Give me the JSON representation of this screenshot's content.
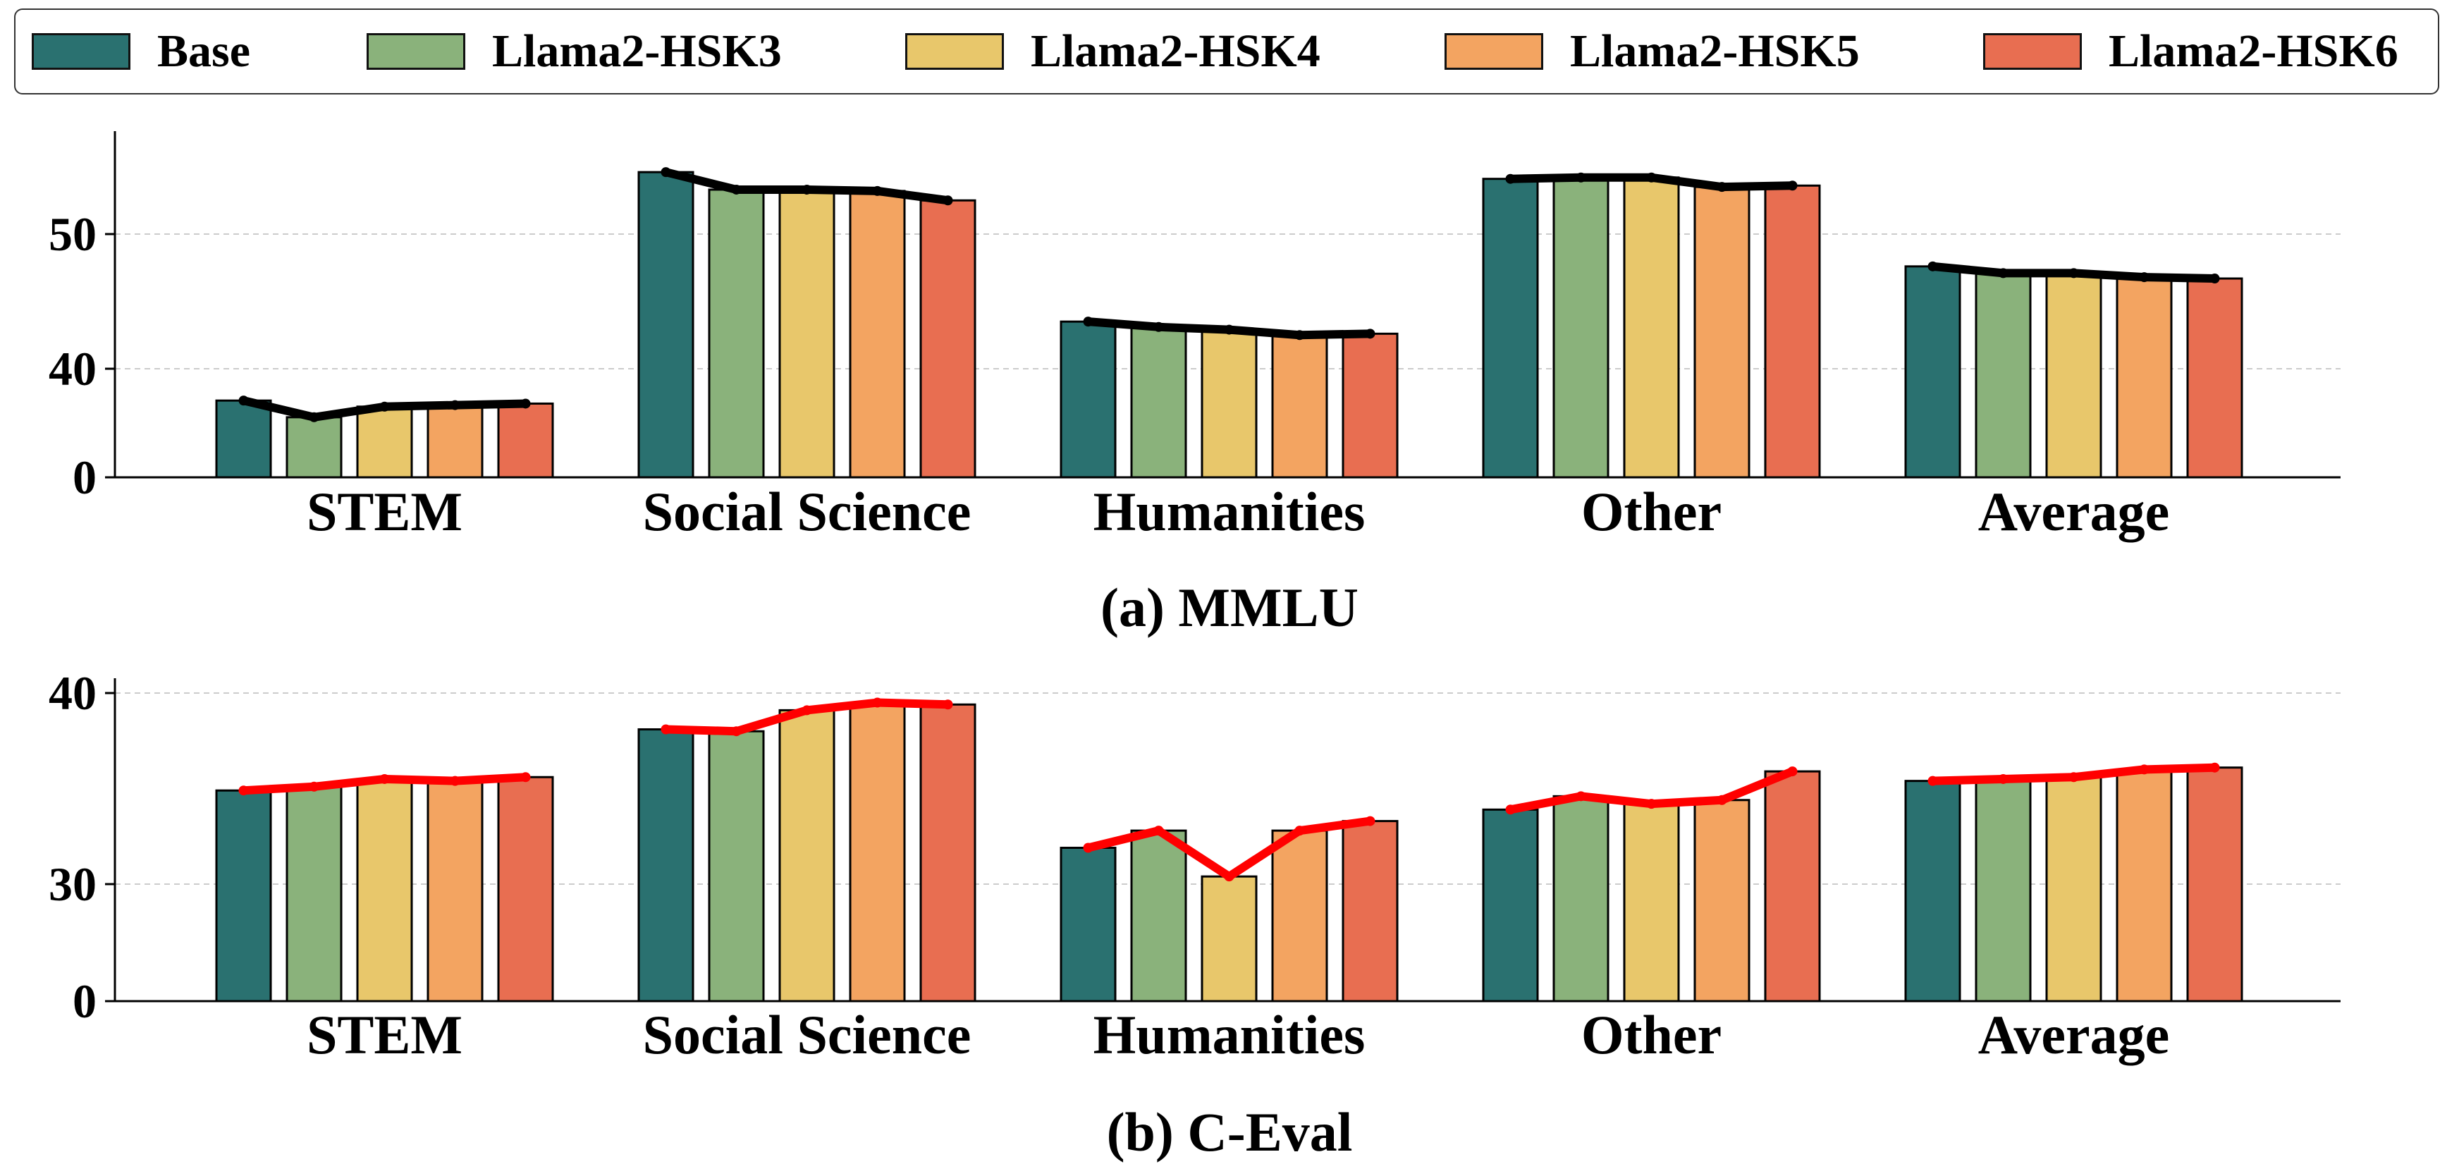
{
  "legend": [
    {
      "label": "Base",
      "color": "#2a7170"
    },
    {
      "label": "Llama2-HSK3",
      "color": "#8ab27b"
    },
    {
      "label": "Llama2-HSK4",
      "color": "#e8c76b"
    },
    {
      "label": "Llama2-HSK5",
      "color": "#f3a461"
    },
    {
      "label": "Llama2-HSK6",
      "color": "#e86e51"
    }
  ],
  "chart_data": [
    {
      "type": "bar",
      "title": "(a) MMLU",
      "categories": [
        "STEM",
        "Social Science",
        "Humanities",
        "Other",
        "Average"
      ],
      "yticks": [
        0,
        40,
        50
      ],
      "axis_break": true,
      "grid": "horizontal-dashed",
      "trend_line_color": "#000000",
      "series": [
        {
          "name": "Base",
          "values": [
            37.9,
            54.6,
            43.5,
            54.1,
            47.6
          ]
        },
        {
          "name": "Llama2-HSK3",
          "values": [
            36.8,
            53.3,
            43.1,
            54.2,
            47.1
          ]
        },
        {
          "name": "Llama2-HSK4",
          "values": [
            37.5,
            53.3,
            42.9,
            54.2,
            47.1
          ]
        },
        {
          "name": "Llama2-HSK5",
          "values": [
            37.6,
            53.2,
            42.5,
            53.5,
            46.8
          ]
        },
        {
          "name": "Llama2-HSK6",
          "values": [
            37.7,
            52.5,
            42.6,
            53.6,
            46.7
          ]
        }
      ]
    },
    {
      "type": "bar",
      "title": "(b) C-Eval",
      "categories": [
        "STEM",
        "Social Science",
        "Humanities",
        "Other",
        "Average"
      ],
      "yticks": [
        0,
        30,
        40
      ],
      "axis_break": true,
      "grid": "horizontal-dashed",
      "trend_line_color": "#ff0000",
      "series": [
        {
          "name": "Base",
          "values": [
            34.9,
            38.1,
            31.9,
            33.9,
            35.4
          ]
        },
        {
          "name": "Llama2-HSK3",
          "values": [
            35.1,
            38.0,
            32.8,
            34.6,
            35.5
          ]
        },
        {
          "name": "Llama2-HSK4",
          "values": [
            35.5,
            39.1,
            30.4,
            34.2,
            35.6
          ]
        },
        {
          "name": "Llama2-HSK5",
          "values": [
            35.4,
            39.5,
            32.8,
            34.4,
            36.0
          ]
        },
        {
          "name": "Llama2-HSK6",
          "values": [
            35.6,
            39.4,
            33.3,
            35.9,
            36.1
          ]
        }
      ]
    }
  ]
}
